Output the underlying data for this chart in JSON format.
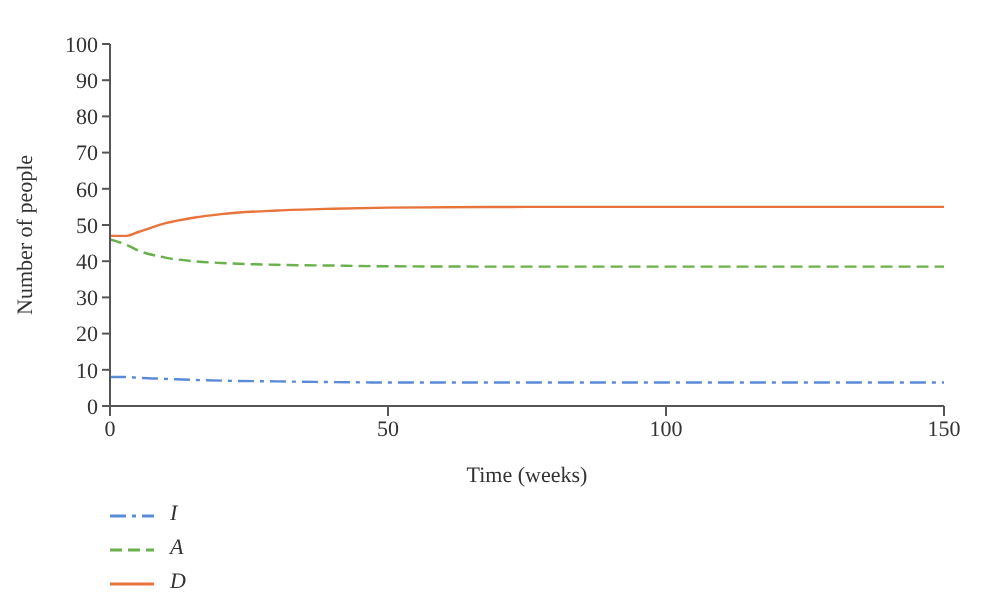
{
  "chart_data": {
    "type": "line",
    "xlabel": "Time (weeks)",
    "ylabel": "Number of people",
    "x": [
      0,
      3,
      5,
      10,
      15,
      20,
      30,
      40,
      50,
      75,
      100,
      125,
      150
    ],
    "series": [
      {
        "name": "I",
        "color": "#5b8bd8",
        "line_style": "dashdot",
        "values": [
          8,
          8,
          7.8,
          7.5,
          7.2,
          7,
          6.8,
          6.6,
          6.5,
          6.5,
          6.5,
          6.5,
          6.5
        ]
      },
      {
        "name": "A",
        "color": "#6ab04c",
        "line_style": "dashed",
        "values": [
          46,
          44.5,
          43,
          41,
          40,
          39.5,
          39,
          38.8,
          38.6,
          38.5,
          38.5,
          38.5,
          38.5
        ]
      },
      {
        "name": "D",
        "color": "#e8743b",
        "line_style": "solid",
        "values": [
          47,
          47,
          48,
          50.5,
          52,
          53,
          54,
          54.5,
          54.8,
          55,
          55,
          55,
          55
        ]
      }
    ],
    "xlim": [
      0,
      150
    ],
    "xticks": [
      0,
      50,
      100,
      150
    ],
    "ylim": [
      0,
      100
    ],
    "yticks": [
      0,
      10,
      20,
      30,
      40,
      50,
      60,
      70,
      80,
      90,
      100
    ],
    "grid": false,
    "legend": "bottom left",
    "marker": "none"
  }
}
